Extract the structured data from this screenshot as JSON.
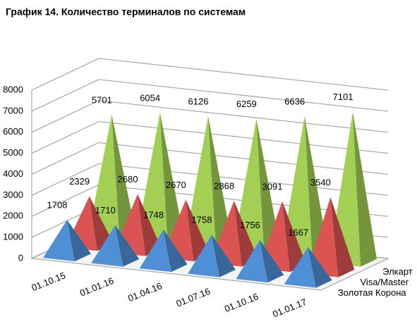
{
  "chart_data": {
    "type": "pyramid3d",
    "title": "График 14. Количество терминалов по системам",
    "categories": [
      "01.10.15",
      "01.01.16",
      "01.04.16",
      "01.07.16",
      "01.10.16",
      "01.01.17"
    ],
    "series": [
      {
        "name": "Золотая Корона",
        "color": "#4f8fd6",
        "values": [
          1708,
          1710,
          1748,
          1758,
          1756,
          1667
        ]
      },
      {
        "name": "Visa/Master",
        "color": "#dc5353",
        "values": [
          2329,
          2680,
          2670,
          2868,
          3091,
          3540
        ]
      },
      {
        "name": "Элкарт",
        "color": "#a3cf55",
        "values": [
          5701,
          6054,
          6126,
          6259,
          6636,
          7101
        ]
      }
    ],
    "ylim": [
      0,
      8000
    ],
    "yticks": [
      0,
      1000,
      2000,
      3000,
      4000,
      5000,
      6000,
      7000,
      8000
    ],
    "grid": true
  }
}
